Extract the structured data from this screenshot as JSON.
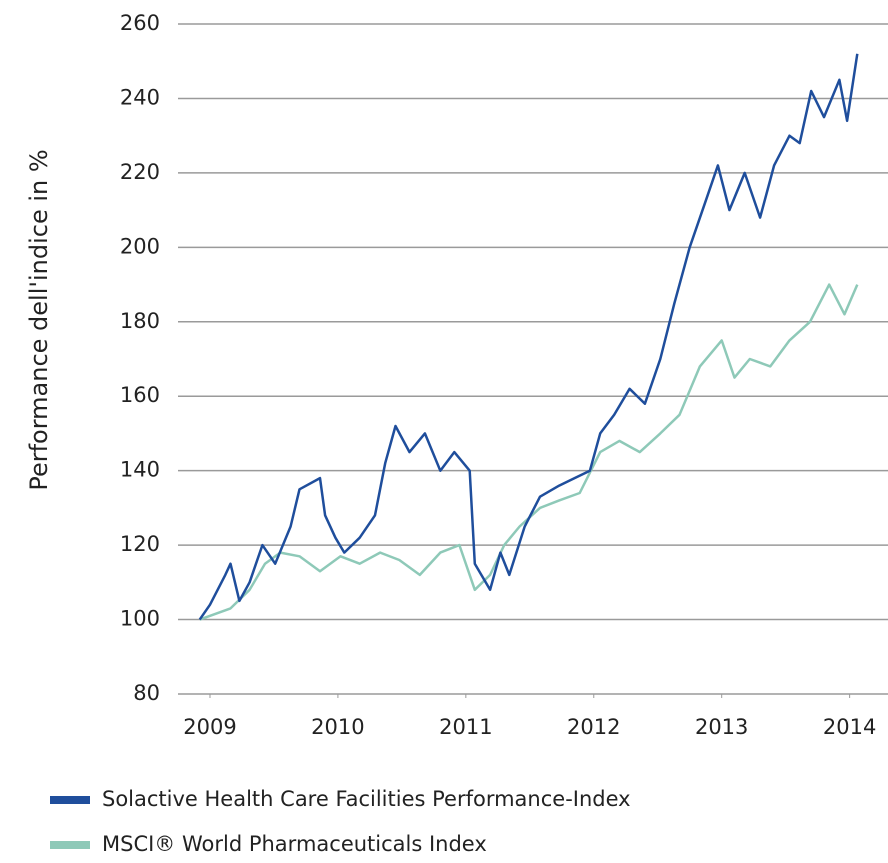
{
  "chart_data": {
    "type": "line",
    "y_label": "Performance dell'indice in %",
    "xlim": [
      2008.75,
      2014.3
    ],
    "xticks": [
      2009,
      2010,
      2011,
      2012,
      2013,
      2014
    ],
    "ylim": [
      80,
      260
    ],
    "yticks": [
      80,
      100,
      120,
      140,
      160,
      180,
      200,
      220,
      240,
      260
    ],
    "grid": true,
    "legend": "bottom",
    "series": [
      {
        "name": "Solactive Health Care Facilities Performance-Index",
        "color": "#1f4e9c",
        "x": [
          2008.92,
          2009.0,
          2009.12,
          2009.16,
          2009.23,
          2009.31,
          2009.41,
          2009.51,
          2009.63,
          2009.7,
          2009.86,
          2009.9,
          2009.98,
          2010.05,
          2010.17,
          2010.29,
          2010.37,
          2010.45,
          2010.56,
          2010.68,
          2010.8,
          2010.91,
          2011.03,
          2011.07,
          2011.19,
          2011.27,
          2011.34,
          2011.46,
          2011.58,
          2011.73,
          2011.85,
          2011.97,
          2012.05,
          2012.16,
          2012.28,
          2012.4,
          2012.52,
          2012.63,
          2012.75,
          2012.87,
          2012.97,
          2013.06,
          2013.18,
          2013.3,
          2013.41,
          2013.53,
          2013.61,
          2013.7,
          2013.8,
          2013.92,
          2013.98,
          2014.06
        ],
        "values": [
          100,
          104,
          112,
          115,
          105,
          110,
          120,
          115,
          125,
          135,
          138,
          128,
          122,
          118,
          122,
          128,
          142,
          152,
          145,
          150,
          140,
          145,
          140,
          115,
          108,
          118,
          112,
          125,
          133,
          136,
          138,
          140,
          150,
          155,
          162,
          158,
          170,
          185,
          200,
          212,
          222,
          210,
          220,
          208,
          222,
          230,
          228,
          242,
          235,
          245,
          234,
          252
        ]
      },
      {
        "name": "MSCI® World Pharmaceuticals Index",
        "color": "#8ec9b8",
        "x": [
          2008.92,
          2009.16,
          2009.31,
          2009.43,
          2009.55,
          2009.7,
          2009.86,
          2010.02,
          2010.17,
          2010.33,
          2010.48,
          2010.64,
          2010.8,
          2010.95,
          2011.07,
          2011.19,
          2011.3,
          2011.42,
          2011.58,
          2011.73,
          2011.89,
          2012.05,
          2012.2,
          2012.36,
          2012.52,
          2012.67,
          2012.83,
          2013.0,
          2013.1,
          2013.22,
          2013.38,
          2013.53,
          2013.69,
          2013.84,
          2013.96,
          2014.06
        ],
        "values": [
          100,
          103,
          108,
          115,
          118,
          117,
          113,
          117,
          115,
          118,
          116,
          112,
          118,
          120,
          108,
          112,
          120,
          125,
          130,
          132,
          134,
          145,
          148,
          145,
          150,
          155,
          168,
          175,
          165,
          170,
          168,
          175,
          180,
          190,
          182,
          190
        ]
      }
    ]
  }
}
